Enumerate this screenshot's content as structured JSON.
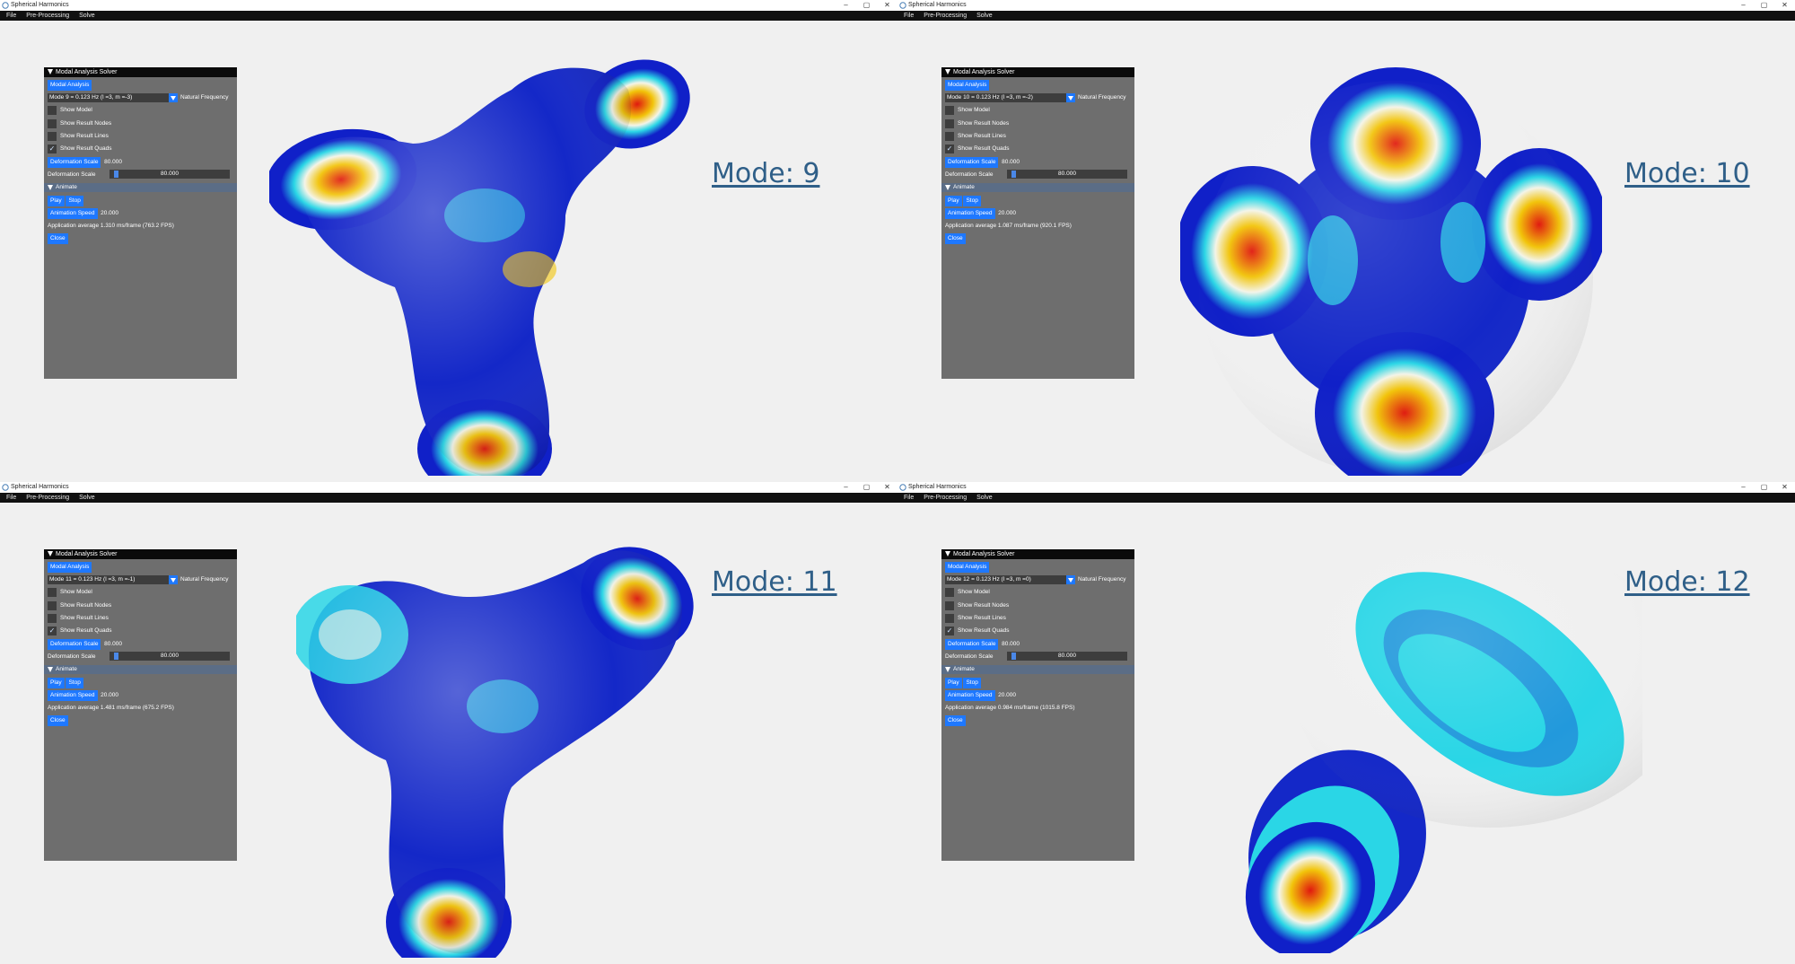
{
  "window_title": "Spherical Harmonics",
  "window_controls": [
    "–",
    "▢",
    "✕"
  ],
  "menu": [
    "File",
    "Pre-Processing",
    "Solve"
  ],
  "panel": {
    "title": "Modal Analysis Solver",
    "modal_analysis_button": "Modal Analysis",
    "natural_frequency_label": "Natural Frequency",
    "checkboxes": [
      "Show Model",
      "Show Result Nodes",
      "Show Result Lines",
      "Show Result Quads"
    ],
    "checked_index": 3,
    "deformation_scale_button": "Deformation Scale",
    "deformation_scale_value": "80.000",
    "deformation_scale_label": "Deformation Scale",
    "deformation_slider_value": "80.000",
    "animate_header": "Animate",
    "play_button": "Play",
    "stop_button": "Stop",
    "animation_speed_button": "Animation Speed",
    "animation_speed_value": "20.000",
    "close_button": "Close"
  },
  "windows": [
    {
      "mode_label": "Mode: 9",
      "mode_combo": "Mode 9 = 0.123 Hz (l =3, m =-3)",
      "fps_text": "Application average 1.310 ms/frame (763.2 FPS)"
    },
    {
      "mode_label": "Mode: 10",
      "mode_combo": "Mode 10 = 0.123 Hz (l =3, m =-2)",
      "fps_text": "Application average 1.087 ms/frame (920.1 FPS)"
    },
    {
      "mode_label": "Mode: 11",
      "mode_combo": "Mode 11 = 0.123 Hz (l =3, m =-1)",
      "fps_text": "Application average 1.481 ms/frame (675.2 FPS)"
    },
    {
      "mode_label": "Mode: 12",
      "mode_combo": "Mode 12 = 0.123 Hz (l =3, m =0)",
      "fps_text": "Application average 0.984 ms/frame (1015.8 FPS)"
    }
  ],
  "colors": {
    "viewport_bg": "#f0f0f0",
    "menu_bg": "#111111",
    "panel_bg": "#6e6e6e",
    "button_blue": "#1e78ff",
    "mode_label": "#2f5f88",
    "colormap": [
      "#1020c8",
      "#2ad6e6",
      "#f4f4e8",
      "#f2c40a",
      "#e0190f"
    ]
  }
}
